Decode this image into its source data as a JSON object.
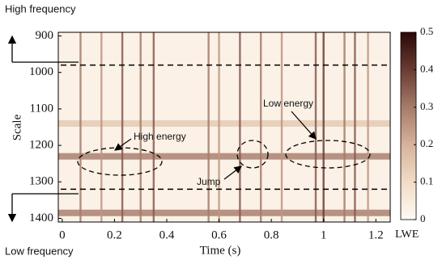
{
  "chart_data": {
    "type": "heatmap",
    "x_label": "Time (s)",
    "y_label": "Scale",
    "xlim": [
      -0.015,
      1.255
    ],
    "xticks": [
      0,
      0.2,
      0.4,
      0.6,
      0.8,
      1,
      1.2
    ],
    "ylim": [
      890,
      1410
    ],
    "yticks": [
      900,
      1000,
      1100,
      1200,
      1300,
      1400
    ],
    "colorbar": {
      "label": "LWE",
      "lim": [
        0,
        0.5
      ],
      "ticks": [
        0,
        0.1,
        0.2,
        0.3,
        0.4,
        0.5
      ],
      "colorscale": [
        "#fffaf3",
        "#f1dcc6",
        "#d6b39a",
        "#a57b69",
        "#6a3b33",
        "#2a0808"
      ]
    },
    "streaks": {
      "x": [
        0.07,
        0.15,
        0.23,
        0.3,
        0.35,
        0.56,
        0.6,
        0.68,
        0.76,
        0.84,
        0.97,
        1.0,
        1.08,
        1.12,
        1.17
      ],
      "values": [
        0.3,
        0.25,
        0.35,
        0.3,
        0.35,
        0.3,
        0.25,
        0.35,
        0.3,
        0.25,
        0.35,
        0.4,
        0.3,
        0.35,
        0.25
      ]
    },
    "bands": {
      "y": [
        1140,
        1230,
        1385
      ],
      "values": [
        0.15,
        0.3,
        0.3
      ]
    },
    "dashed_lines": [
      980,
      1320
    ],
    "annotations": {
      "high_energy": "High energy",
      "low_energy": "Low energy",
      "jump": "Jump",
      "high_frequency": "High frequency",
      "low_frequency": "Low frequency"
    }
  }
}
